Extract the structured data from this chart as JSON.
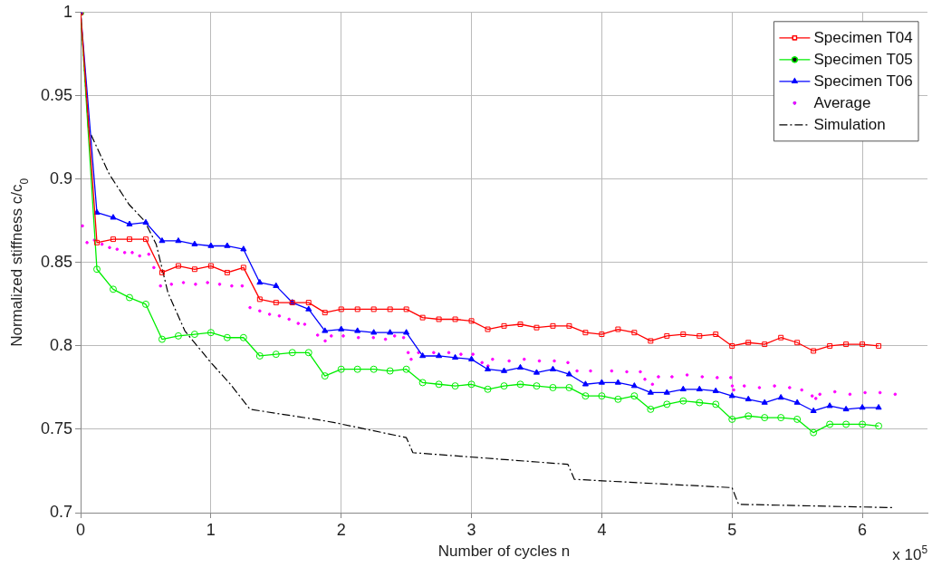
{
  "chart_data": {
    "type": "line",
    "xlabel": "Number of cycles n",
    "ylabel": "Normalized stiffness c/c$_{0}$",
    "annotations": [
      "x 10$^{5}$"
    ],
    "x": [
      0,
      0.125,
      0.25,
      0.375,
      0.5,
      0.625,
      0.75,
      0.875,
      1,
      1.125,
      1.25,
      1.375,
      1.5,
      1.625,
      1.75,
      1.875,
      2,
      2.125,
      2.25,
      2.375,
      2.5,
      2.625,
      2.75,
      2.875,
      3,
      3.125,
      3.25,
      3.375,
      3.5,
      3.625,
      3.75,
      3.875,
      4,
      4.125,
      4.25,
      4.375,
      4.5,
      4.625,
      4.75,
      4.875,
      5,
      5.125,
      5.25,
      5.375,
      5.5,
      5.625,
      5.75,
      5.875,
      6,
      6.125
    ],
    "series": [
      {
        "name": "Specimen T04",
        "color": "#ff0000",
        "marker": "square",
        "values": [
          1.0,
          0.862,
          0.864,
          0.864,
          0.864,
          0.844,
          0.848,
          0.846,
          0.848,
          0.844,
          0.847,
          0.828,
          0.826,
          0.826,
          0.826,
          0.82,
          0.822,
          0.822,
          0.822,
          0.822,
          0.822,
          0.817,
          0.816,
          0.816,
          0.815,
          0.81,
          0.812,
          0.813,
          0.811,
          0.812,
          0.812,
          0.808,
          0.807,
          0.81,
          0.808,
          0.803,
          0.806,
          0.807,
          0.806,
          0.807,
          0.8,
          0.802,
          0.801,
          0.805,
          0.802,
          0.797,
          0.8,
          0.801,
          0.801,
          0.8
        ]
      },
      {
        "name": "Specimen T05",
        "color": "#00ee00",
        "marker": "circle",
        "values": [
          1.0,
          0.846,
          0.834,
          0.829,
          0.825,
          0.804,
          0.806,
          0.807,
          0.808,
          0.805,
          0.805,
          0.794,
          0.795,
          0.796,
          0.796,
          0.782,
          0.786,
          0.786,
          0.786,
          0.785,
          0.786,
          0.778,
          0.777,
          0.776,
          0.777,
          0.774,
          0.776,
          0.777,
          0.776,
          0.775,
          0.775,
          0.77,
          0.77,
          0.768,
          0.77,
          0.762,
          0.765,
          0.767,
          0.766,
          0.765,
          0.756,
          0.758,
          0.757,
          0.757,
          0.756,
          0.748,
          0.753,
          0.753,
          0.753,
          0.752
        ]
      },
      {
        "name": "Specimen T06",
        "color": "#0000ff",
        "marker": "triangle",
        "values": [
          1.0,
          0.88,
          0.877,
          0.873,
          0.874,
          0.863,
          0.863,
          0.861,
          0.86,
          0.86,
          0.858,
          0.838,
          0.836,
          0.826,
          0.822,
          0.809,
          0.81,
          0.809,
          0.808,
          0.808,
          0.808,
          0.794,
          0.794,
          0.793,
          0.792,
          0.786,
          0.785,
          0.787,
          0.784,
          0.786,
          0.783,
          0.777,
          0.778,
          0.778,
          0.776,
          0.772,
          0.772,
          0.774,
          0.774,
          0.773,
          0.77,
          0.768,
          0.766,
          0.769,
          0.766,
          0.761,
          0.764,
          0.762,
          0.763,
          0.763
        ]
      },
      {
        "name": "Average",
        "type": "scatter",
        "color": "#ff00ff",
        "marker": "circle",
        "x": [
          0.014,
          0.049,
          0.106,
          0.164,
          0.222,
          0.28,
          0.338,
          0.396,
          0.453,
          0.523,
          0.562,
          0.613,
          0.697,
          0.789,
          0.882,
          0.974,
          1.067,
          1.16,
          1.24,
          1.3,
          1.375,
          1.45,
          1.525,
          1.6,
          1.67,
          1.72,
          1.819,
          1.877,
          1.924,
          2.016,
          2.132,
          2.247,
          2.34,
          2.41,
          2.479,
          2.514,
          2.537,
          2.594,
          2.71,
          2.826,
          2.919,
          3.011,
          3.081,
          3.127,
          3.162,
          3.289,
          3.405,
          3.521,
          3.636,
          3.74,
          3.81,
          3.914,
          4.076,
          4.192,
          4.296,
          4.331,
          4.389,
          4.435,
          4.539,
          4.655,
          4.771,
          4.886,
          4.99,
          5.002,
          5.013,
          5.094,
          5.21,
          5.326,
          5.442,
          5.535,
          5.615,
          5.643,
          5.674,
          5.789,
          5.905,
          6.021,
          6.136,
          6.252
        ],
        "values": [
          0.872,
          0.862,
          0.8635,
          0.861,
          0.859,
          0.858,
          0.856,
          0.856,
          0.854,
          0.855,
          0.847,
          0.836,
          0.837,
          0.838,
          0.837,
          0.838,
          0.837,
          0.836,
          0.836,
          0.823,
          0.821,
          0.819,
          0.818,
          0.816,
          0.8135,
          0.813,
          0.8065,
          0.803,
          0.806,
          0.806,
          0.805,
          0.805,
          0.804,
          0.806,
          0.805,
          0.796,
          0.792,
          0.796,
          0.796,
          0.796,
          0.795,
          0.795,
          0.79,
          0.788,
          0.792,
          0.791,
          0.792,
          0.791,
          0.791,
          0.79,
          0.785,
          0.785,
          0.785,
          0.7845,
          0.7845,
          0.78,
          0.777,
          0.7815,
          0.7815,
          0.7826,
          0.7815,
          0.781,
          0.781,
          0.776,
          0.7736,
          0.776,
          0.775,
          0.776,
          0.775,
          0.7736,
          0.77,
          0.7685,
          0.771,
          0.7725,
          0.771,
          0.772,
          0.772,
          0.771
        ]
      },
      {
        "name": "Simulation",
        "color": "#000000",
        "marker": "none",
        "line_style": "dashed",
        "x": [
          0,
          0.06,
          0.22,
          0.37,
          0.49,
          0.58,
          0.67,
          0.8,
          1,
          1.15,
          1.3,
          1.8,
          1.95,
          2.5,
          2.55,
          3.74,
          3.79,
          5,
          5.05,
          6.24
        ],
        "values": [
          1.0,
          0.93,
          0.903,
          0.885,
          0.875,
          0.861,
          0.832,
          0.809,
          0.79,
          0.777,
          0.762,
          0.756,
          0.754,
          0.745,
          0.736,
          0.729,
          0.72,
          0.715,
          0.705,
          0.703
        ]
      }
    ],
    "xlim": [
      0,
      6.5
    ],
    "xticks": [
      0,
      1,
      2,
      3,
      4,
      5,
      6
    ],
    "ylim": [
      0.7,
      1
    ],
    "yticks": [
      0.7,
      0.75,
      0.8,
      0.85,
      0.9,
      0.95,
      1
    ],
    "grid": true,
    "legend": "top right"
  }
}
